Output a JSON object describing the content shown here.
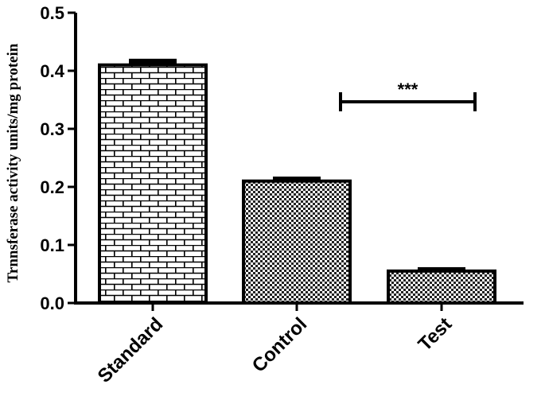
{
  "chart_data": {
    "type": "bar",
    "title": "",
    "xlabel": "",
    "ylabel": "Trnnsferase activity units/mg protein",
    "ylim": [
      0,
      0.5
    ],
    "yticks": [
      0.0,
      0.1,
      0.2,
      0.3,
      0.4,
      0.5
    ],
    "ytick_labels": [
      "0.0",
      "0.1",
      "0.2",
      "0.3",
      "0.4",
      "0.5"
    ],
    "categories": [
      "Standard",
      "Control",
      "Test"
    ],
    "values": [
      0.41,
      0.21,
      0.055
    ],
    "errors": [
      0.008,
      0.005,
      0.004
    ],
    "patterns": [
      "brick",
      "checker",
      "checker"
    ],
    "significance": {
      "from": "Control",
      "to": "Test",
      "label": "***"
    },
    "grid": false,
    "legend": "none"
  }
}
